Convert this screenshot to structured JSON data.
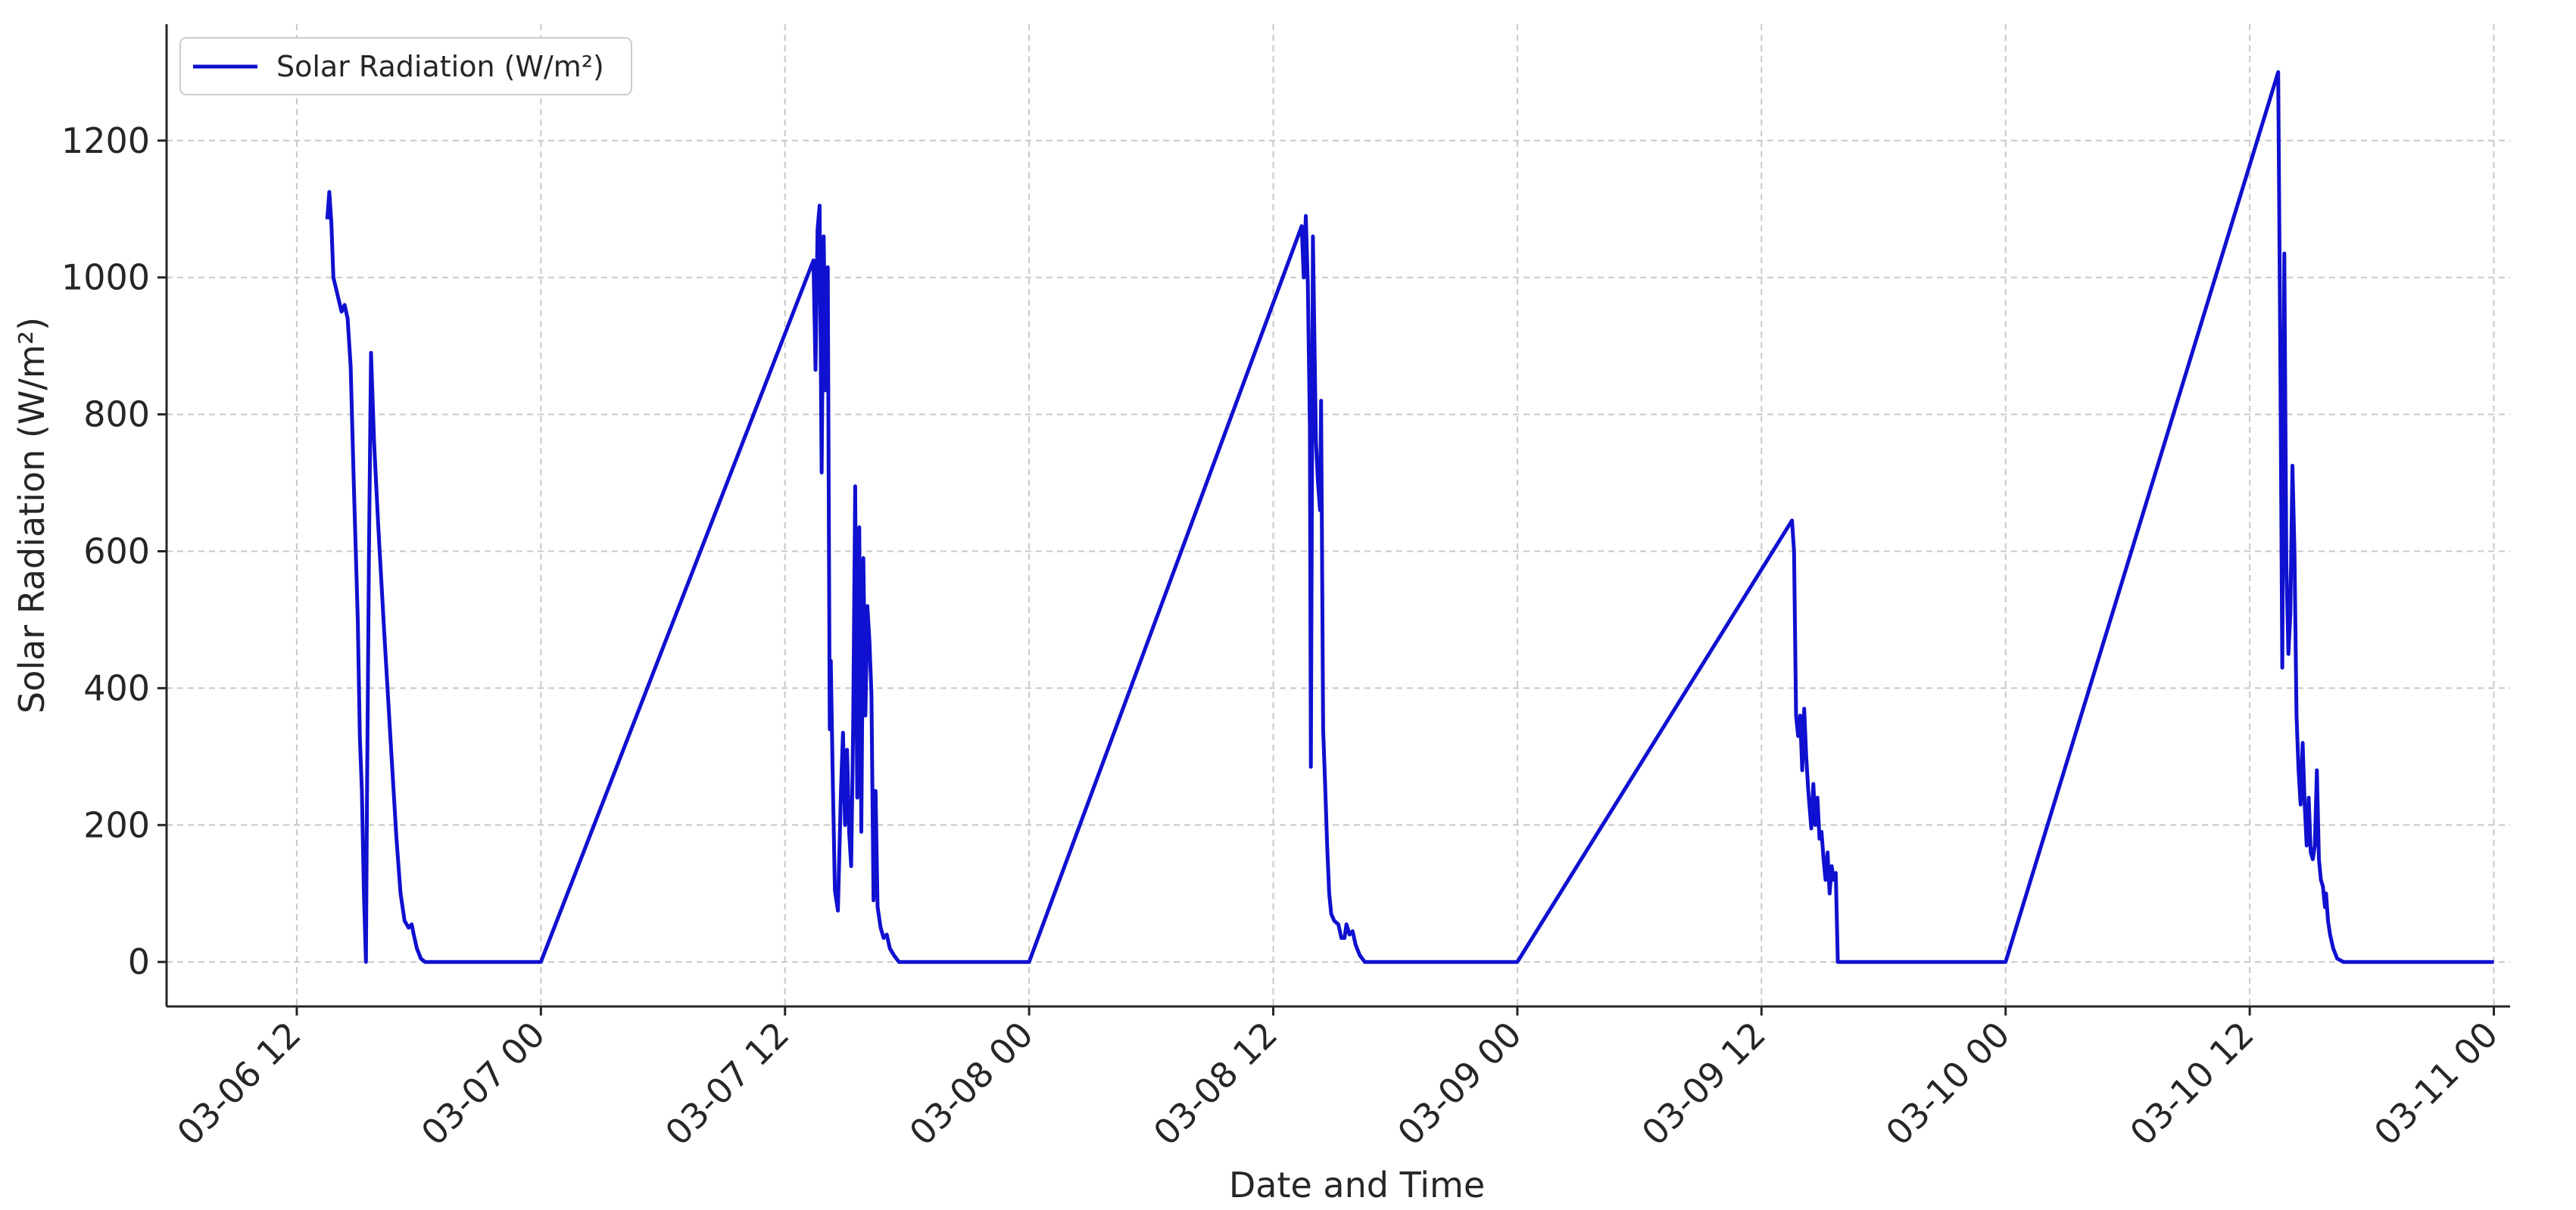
{
  "chart_data": {
    "type": "line",
    "title": "",
    "xlabel": "Date and Time",
    "ylabel": "Solar Radiation (W/m²)",
    "ylim": [
      -65,
      1370
    ],
    "xlim_hours": [
      -6.4,
      108.8
    ],
    "x_ticks": [
      {
        "label": "03-06 12",
        "hours": 0
      },
      {
        "label": "03-07 00",
        "hours": 12
      },
      {
        "label": "03-07 12",
        "hours": 24
      },
      {
        "label": "03-08 00",
        "hours": 36
      },
      {
        "label": "03-08 12",
        "hours": 48
      },
      {
        "label": "03-09 00",
        "hours": 60
      },
      {
        "label": "03-09 12",
        "hours": 72
      },
      {
        "label": "03-10 00",
        "hours": 84
      },
      {
        "label": "03-10 12",
        "hours": 96
      },
      {
        "label": "03-11 00",
        "hours": 108
      }
    ],
    "y_ticks": [
      0,
      200,
      400,
      600,
      800,
      1000,
      1200
    ],
    "grid": true,
    "legend_position": "top-left",
    "series": [
      {
        "name": "Solar Radiation (W/m²)",
        "color": "#1010d0",
        "points": [
          [
            1.5,
            1085
          ],
          [
            1.6,
            1125
          ],
          [
            1.7,
            1080
          ],
          [
            1.8,
            1000
          ],
          [
            2.0,
            975
          ],
          [
            2.2,
            950
          ],
          [
            2.35,
            960
          ],
          [
            2.5,
            940
          ],
          [
            2.65,
            870
          ],
          [
            2.8,
            700
          ],
          [
            3.0,
            500
          ],
          [
            3.1,
            330
          ],
          [
            3.2,
            250
          ],
          [
            3.3,
            100
          ],
          [
            3.4,
            0
          ],
          [
            3.45,
            230
          ],
          [
            3.55,
            600
          ],
          [
            3.65,
            890
          ],
          [
            3.8,
            760
          ],
          [
            4.0,
            640
          ],
          [
            4.3,
            480
          ],
          [
            4.6,
            330
          ],
          [
            4.9,
            180
          ],
          [
            5.1,
            100
          ],
          [
            5.3,
            60
          ],
          [
            5.5,
            50
          ],
          [
            5.65,
            55
          ],
          [
            5.75,
            40
          ],
          [
            5.9,
            20
          ],
          [
            6.1,
            5
          ],
          [
            6.3,
            0
          ],
          [
            12.0,
            0
          ],
          [
            25.4,
            1025
          ],
          [
            25.5,
            865
          ],
          [
            25.6,
            1070
          ],
          [
            25.7,
            1105
          ],
          [
            25.8,
            715
          ],
          [
            25.9,
            1060
          ],
          [
            26.0,
            835
          ],
          [
            26.1,
            1015
          ],
          [
            26.2,
            340
          ],
          [
            26.25,
            440
          ],
          [
            26.35,
            260
          ],
          [
            26.45,
            105
          ],
          [
            26.6,
            75
          ],
          [
            26.75,
            250
          ],
          [
            26.85,
            335
          ],
          [
            26.95,
            200
          ],
          [
            27.05,
            310
          ],
          [
            27.15,
            190
          ],
          [
            27.25,
            140
          ],
          [
            27.35,
            340
          ],
          [
            27.45,
            695
          ],
          [
            27.55,
            240
          ],
          [
            27.65,
            635
          ],
          [
            27.75,
            190
          ],
          [
            27.85,
            590
          ],
          [
            27.95,
            360
          ],
          [
            28.05,
            520
          ],
          [
            28.15,
            470
          ],
          [
            28.25,
            390
          ],
          [
            28.35,
            90
          ],
          [
            28.45,
            250
          ],
          [
            28.55,
            80
          ],
          [
            28.7,
            50
          ],
          [
            28.85,
            35
          ],
          [
            29.0,
            40
          ],
          [
            29.15,
            20
          ],
          [
            29.35,
            10
          ],
          [
            29.6,
            0
          ],
          [
            36.0,
            0
          ],
          [
            49.4,
            1075
          ],
          [
            49.5,
            1000
          ],
          [
            49.6,
            1090
          ],
          [
            49.7,
            990
          ],
          [
            49.8,
            780
          ],
          [
            49.85,
            285
          ],
          [
            49.95,
            1060
          ],
          [
            50.1,
            760
          ],
          [
            50.2,
            700
          ],
          [
            50.3,
            660
          ],
          [
            50.35,
            820
          ],
          [
            50.45,
            340
          ],
          [
            50.55,
            260
          ],
          [
            50.65,
            170
          ],
          [
            50.75,
            100
          ],
          [
            50.85,
            70
          ],
          [
            51.0,
            60
          ],
          [
            51.2,
            55
          ],
          [
            51.35,
            35
          ],
          [
            51.5,
            35
          ],
          [
            51.6,
            55
          ],
          [
            51.75,
            40
          ],
          [
            51.9,
            45
          ],
          [
            52.05,
            25
          ],
          [
            52.25,
            10
          ],
          [
            52.5,
            0
          ],
          [
            60.0,
            0
          ],
          [
            73.5,
            645
          ],
          [
            73.6,
            600
          ],
          [
            73.7,
            360
          ],
          [
            73.8,
            330
          ],
          [
            73.9,
            360
          ],
          [
            74.0,
            280
          ],
          [
            74.1,
            370
          ],
          [
            74.2,
            300
          ],
          [
            74.3,
            250
          ],
          [
            74.45,
            195
          ],
          [
            74.55,
            260
          ],
          [
            74.65,
            200
          ],
          [
            74.75,
            240
          ],
          [
            74.85,
            180
          ],
          [
            74.95,
            190
          ],
          [
            75.05,
            150
          ],
          [
            75.15,
            120
          ],
          [
            75.25,
            160
          ],
          [
            75.35,
            100
          ],
          [
            75.45,
            140
          ],
          [
            75.55,
            120
          ],
          [
            75.65,
            130
          ],
          [
            75.75,
            0
          ],
          [
            84.0,
            0
          ],
          [
            97.4,
            1300
          ],
          [
            97.5,
            900
          ],
          [
            97.6,
            430
          ],
          [
            97.7,
            1035
          ],
          [
            97.8,
            580
          ],
          [
            97.9,
            450
          ],
          [
            98.0,
            510
          ],
          [
            98.1,
            725
          ],
          [
            98.2,
            600
          ],
          [
            98.3,
            360
          ],
          [
            98.4,
            280
          ],
          [
            98.5,
            230
          ],
          [
            98.6,
            320
          ],
          [
            98.7,
            230
          ],
          [
            98.8,
            170
          ],
          [
            98.9,
            240
          ],
          [
            99.0,
            160
          ],
          [
            99.1,
            150
          ],
          [
            99.2,
            170
          ],
          [
            99.3,
            280
          ],
          [
            99.4,
            150
          ],
          [
            99.5,
            120
          ],
          [
            99.6,
            110
          ],
          [
            99.7,
            80
          ],
          [
            99.75,
            100
          ],
          [
            99.85,
            60
          ],
          [
            99.95,
            40
          ],
          [
            100.1,
            20
          ],
          [
            100.3,
            5
          ],
          [
            100.6,
            0
          ],
          [
            108.0,
            0
          ]
        ]
      }
    ]
  }
}
